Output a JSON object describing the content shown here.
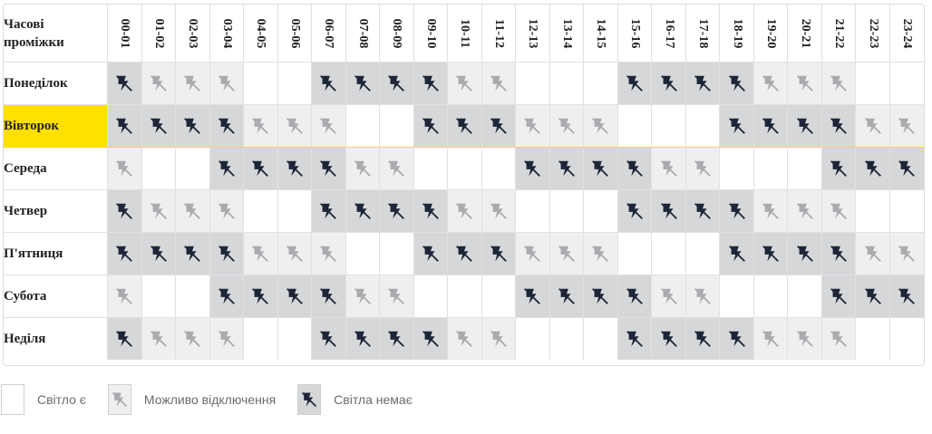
{
  "header": {
    "corner_label_line1": "Часові",
    "corner_label_line2": "проміжки"
  },
  "hours": [
    "00-01",
    "01-02",
    "02-03",
    "03-04",
    "04-05",
    "05-06",
    "06-07",
    "07-08",
    "08-09",
    "09-10",
    "10-11",
    "11-12",
    "12-13",
    "13-14",
    "14-15",
    "15-16",
    "16-17",
    "17-18",
    "18-19",
    "19-20",
    "20-21",
    "21-22",
    "22-23",
    "23-24"
  ],
  "current_day_index": 1,
  "days": [
    {
      "name": "Понеділок",
      "slots": [
        "no",
        "maybe",
        "maybe",
        "maybe",
        "yes",
        "yes",
        "no",
        "no",
        "no",
        "no",
        "maybe",
        "maybe",
        "yes",
        "yes",
        "yes",
        "no",
        "no",
        "no",
        "no",
        "maybe",
        "maybe",
        "maybe",
        "yes",
        "yes"
      ]
    },
    {
      "name": "Вівторок",
      "slots": [
        "no",
        "no",
        "no",
        "no",
        "maybe",
        "maybe",
        "maybe",
        "yes",
        "yes",
        "no",
        "no",
        "no",
        "maybe",
        "maybe",
        "maybe",
        "yes",
        "yes",
        "yes",
        "no",
        "no",
        "no",
        "no",
        "maybe",
        "maybe"
      ]
    },
    {
      "name": "Середа",
      "slots": [
        "maybe",
        "yes",
        "yes",
        "no",
        "no",
        "no",
        "no",
        "maybe",
        "maybe",
        "yes",
        "yes",
        "yes",
        "no",
        "no",
        "no",
        "no",
        "maybe",
        "maybe",
        "yes",
        "yes",
        "yes",
        "no",
        "no",
        "no"
      ]
    },
    {
      "name": "Четвер",
      "slots": [
        "no",
        "maybe",
        "maybe",
        "maybe",
        "yes",
        "yes",
        "no",
        "no",
        "no",
        "no",
        "maybe",
        "maybe",
        "yes",
        "yes",
        "yes",
        "no",
        "no",
        "no",
        "no",
        "maybe",
        "maybe",
        "maybe",
        "yes",
        "yes"
      ]
    },
    {
      "name": "П'ятниця",
      "slots": [
        "no",
        "no",
        "no",
        "no",
        "maybe",
        "maybe",
        "maybe",
        "yes",
        "yes",
        "no",
        "no",
        "no",
        "maybe",
        "maybe",
        "maybe",
        "yes",
        "yes",
        "yes",
        "no",
        "no",
        "no",
        "no",
        "maybe",
        "maybe"
      ]
    },
    {
      "name": "Субота",
      "slots": [
        "maybe",
        "yes",
        "yes",
        "no",
        "no",
        "no",
        "no",
        "maybe",
        "maybe",
        "yes",
        "yes",
        "yes",
        "no",
        "no",
        "no",
        "no",
        "maybe",
        "maybe",
        "yes",
        "yes",
        "yes",
        "no",
        "no",
        "no"
      ]
    },
    {
      "name": "Неділя",
      "slots": [
        "no",
        "maybe",
        "maybe",
        "maybe",
        "yes",
        "yes",
        "no",
        "no",
        "no",
        "no",
        "maybe",
        "maybe",
        "yes",
        "yes",
        "yes",
        "no",
        "no",
        "no",
        "no",
        "maybe",
        "maybe",
        "maybe",
        "yes",
        "yes"
      ]
    }
  ],
  "legend": {
    "yes_label": "Світло є",
    "maybe_label": "Можливо відключення",
    "no_label": "Світла немає"
  },
  "icons": {
    "power_off": "power-off-icon"
  },
  "colors": {
    "current_day_highlight": "#ffe100",
    "no_power_bg": "#d6d7d9",
    "maybe_bg": "#efefef",
    "icon_dark": "#1c2638",
    "icon_light": "#a9abae"
  }
}
